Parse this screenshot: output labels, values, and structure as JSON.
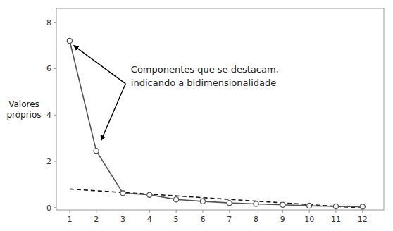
{
  "chart_data": {
    "type": "line",
    "ylabel": "Valores\npróprios",
    "x": [
      1,
      2,
      3,
      4,
      5,
      6,
      7,
      8,
      9,
      10,
      11,
      12
    ],
    "values": [
      7.2,
      2.45,
      0.62,
      0.55,
      0.35,
      0.27,
      0.2,
      0.16,
      0.12,
      0.08,
      0.05,
      0.04
    ],
    "color": "#555555",
    "marker": "circle",
    "reference_line": {
      "x": [
        1,
        12
      ],
      "values": [
        0.8,
        -0.02
      ],
      "line_style": "dashed",
      "color": "#111111"
    },
    "annotations": [
      {
        "text": "Componentes que se destacam,\nindicando a bidimensionalidade",
        "x": 3.3,
        "y": 6.2
      }
    ],
    "arrows": [
      {
        "x_from": 3.1,
        "y_from": 5.35,
        "x": 1.15,
        "y": 7.0
      },
      {
        "x_from": 3.1,
        "y_from": 5.35,
        "x": 2.18,
        "y": 2.9
      }
    ],
    "xlim": [
      0.5,
      12.8
    ],
    "ylim": [
      -0.1,
      8.6
    ],
    "xticks": [
      1,
      2,
      3,
      4,
      5,
      6,
      7,
      8,
      9,
      10,
      11,
      12
    ],
    "yticks": [
      0,
      2,
      4,
      6,
      8
    ],
    "grid": false
  }
}
